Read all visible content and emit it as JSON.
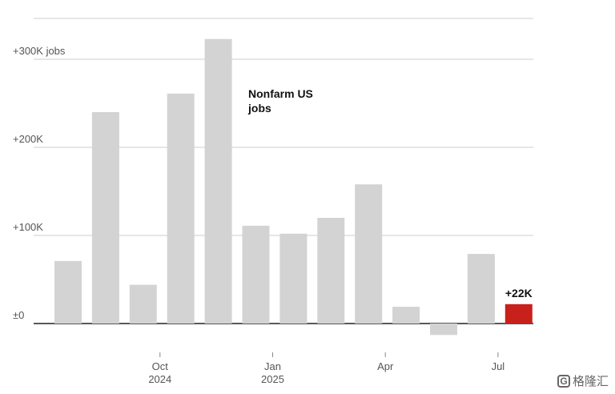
{
  "chart_data": {
    "type": "bar",
    "categories": [
      "2024-08",
      "2024-09",
      "2024-10",
      "2024-11",
      "2024-12",
      "2025-01",
      "2025-02",
      "2025-03",
      "2025-04",
      "2025-05",
      "2025-06",
      "2025-07",
      "2025-08"
    ],
    "values": [
      71,
      240,
      44,
      261,
      323,
      111,
      102,
      120,
      158,
      19,
      -13,
      79,
      22
    ],
    "highlight_index": 12,
    "highlight_label": "+22K",
    "annotation": "Nonfarm US jobs",
    "title": "",
    "xlabel": "",
    "ylabel": "",
    "ylim": [
      -20,
      350
    ],
    "yticks": [
      {
        "value": 0,
        "label": "±0"
      },
      {
        "value": 100,
        "label": "+100K"
      },
      {
        "value": 200,
        "label": "+200K"
      },
      {
        "value": 300,
        "label": "+300K jobs"
      }
    ],
    "xticks": [
      {
        "index": 2,
        "label": "Oct",
        "sublabel": "2024"
      },
      {
        "index": 5,
        "label": "Jan",
        "sublabel": "2025"
      },
      {
        "index": 8,
        "label": "Apr",
        "sublabel": ""
      },
      {
        "index": 11,
        "label": "Jul",
        "sublabel": ""
      }
    ],
    "grid": true,
    "colors": {
      "bar": "#d3d3d3",
      "highlight": "#c8211b",
      "grid": "#cccccc",
      "baseline": "#222222"
    }
  },
  "watermark": {
    "icon": "g-logo-icon",
    "icon_glyph": "G",
    "text": "格隆汇"
  }
}
